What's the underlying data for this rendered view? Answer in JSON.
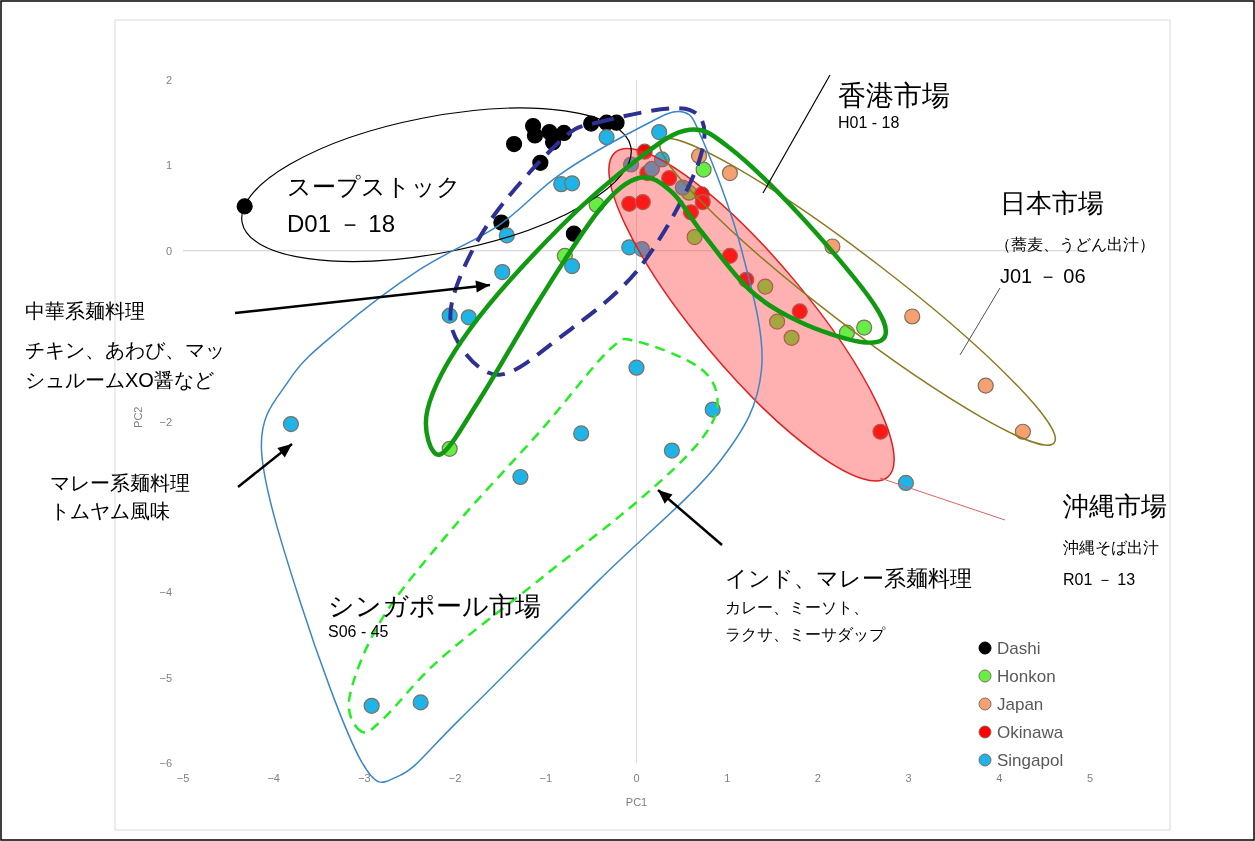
{
  "chart_data": {
    "type": "scatter",
    "xlabel": "PC1",
    "ylabel": "PC2",
    "xlim": [
      -5,
      5
    ],
    "ylim": [
      -6,
      2
    ],
    "xticks": [
      -5,
      -4,
      -3,
      -2,
      -1,
      0,
      1,
      2,
      3,
      4,
      5
    ],
    "yticks": [
      -6,
      -5,
      -4,
      -2,
      0,
      1,
      2
    ],
    "marker": "circle",
    "legend": "bottom right",
    "ref_lines": [
      {
        "axis": "x",
        "value": 0,
        "color": "#d9d9d9"
      },
      {
        "axis": "y",
        "value": 0,
        "color": "#cfcfcf"
      }
    ],
    "series": [
      {
        "name": "Dashi",
        "color": "#000000",
        "x": [
          -4.32,
          -1.35,
          -1.14,
          -1.12,
          -0.96,
          -0.92,
          -0.8,
          -1.06,
          -0.5,
          -0.33,
          -0.22,
          -1.49,
          -0.69
        ],
        "values": [
          0.52,
          1.25,
          1.46,
          1.35,
          1.39,
          1.27,
          1.38,
          1.03,
          1.49,
          1.5,
          1.5,
          0.33,
          0.2
        ]
      },
      {
        "name": "Honkon",
        "color": "#66ee44",
        "x": [
          -0.44,
          -0.79,
          0.74,
          2.51,
          -2.06,
          0.58,
          0.64,
          1.42,
          1.55,
          1.71,
          2.32
        ],
        "values": [
          0.54,
          -0.06,
          0.95,
          -0.9,
          -2.32,
          0.68,
          0.16,
          -0.42,
          -0.83,
          -1.02,
          -0.96
        ]
      },
      {
        "name": "Japan",
        "color": "#f4a070",
        "x": [
          0.69,
          1.03,
          2.16,
          3.04,
          3.85,
          4.26
        ],
        "values": [
          1.11,
          0.91,
          0.05,
          -0.77,
          -1.58,
          -2.12
        ]
      },
      {
        "name": "Okinawa",
        "color": "#ff0000",
        "x": [
          0.09,
          0.12,
          0.36,
          -0.08,
          0.07,
          0.72,
          0.73,
          0.6,
          1.03,
          1.21,
          1.8,
          2.69
        ],
        "values": [
          1.16,
          0.91,
          0.85,
          0.55,
          0.57,
          0.66,
          0.57,
          0.45,
          -0.06,
          -0.34,
          -0.71,
          -2.12
        ]
      },
      {
        "name": "Singapol",
        "color": "#1eb4e8",
        "x": [
          0.25,
          -0.83,
          -0.71,
          -1.43,
          -0.08,
          0.06,
          -1.48,
          -0.71,
          -2.06,
          -1.85,
          -3.81,
          0.0,
          0.84,
          -0.61,
          0.39,
          -1.28,
          -2.92,
          -2.38,
          2.97,
          -0.06,
          0.17,
          0.28,
          0.51,
          -0.33
        ],
        "values": [
          1.39,
          0.78,
          0.79,
          0.18,
          0.04,
          0.02,
          -0.25,
          -0.18,
          -0.76,
          -0.78,
          -2.03,
          -1.37,
          -1.86,
          -2.14,
          -2.34,
          -2.65,
          -5.33,
          -5.29,
          -2.72,
          1.01,
          0.96,
          1.07,
          0.74,
          1.33
        ]
      }
    ],
    "annotations": [
      "香港市場",
      "H01 - 18",
      "日本市場",
      "（蕎麦、うどん出汁）",
      "J01 － 06",
      "スープストック",
      "D01 － 18",
      "中華系麺料理",
      "チキン、あわび、マッ",
      "シュルームXO醤など",
      "マレー系麺料理",
      "トムヤム風味",
      "シンガポール市場",
      "S06 - 45",
      "インド、マレー系麺料理",
      "カレー、ミーソト、",
      "ラクサ、ミーサダップ",
      "沖縄市場",
      "沖縄そば出汁",
      "R01 － 13"
    ]
  }
}
